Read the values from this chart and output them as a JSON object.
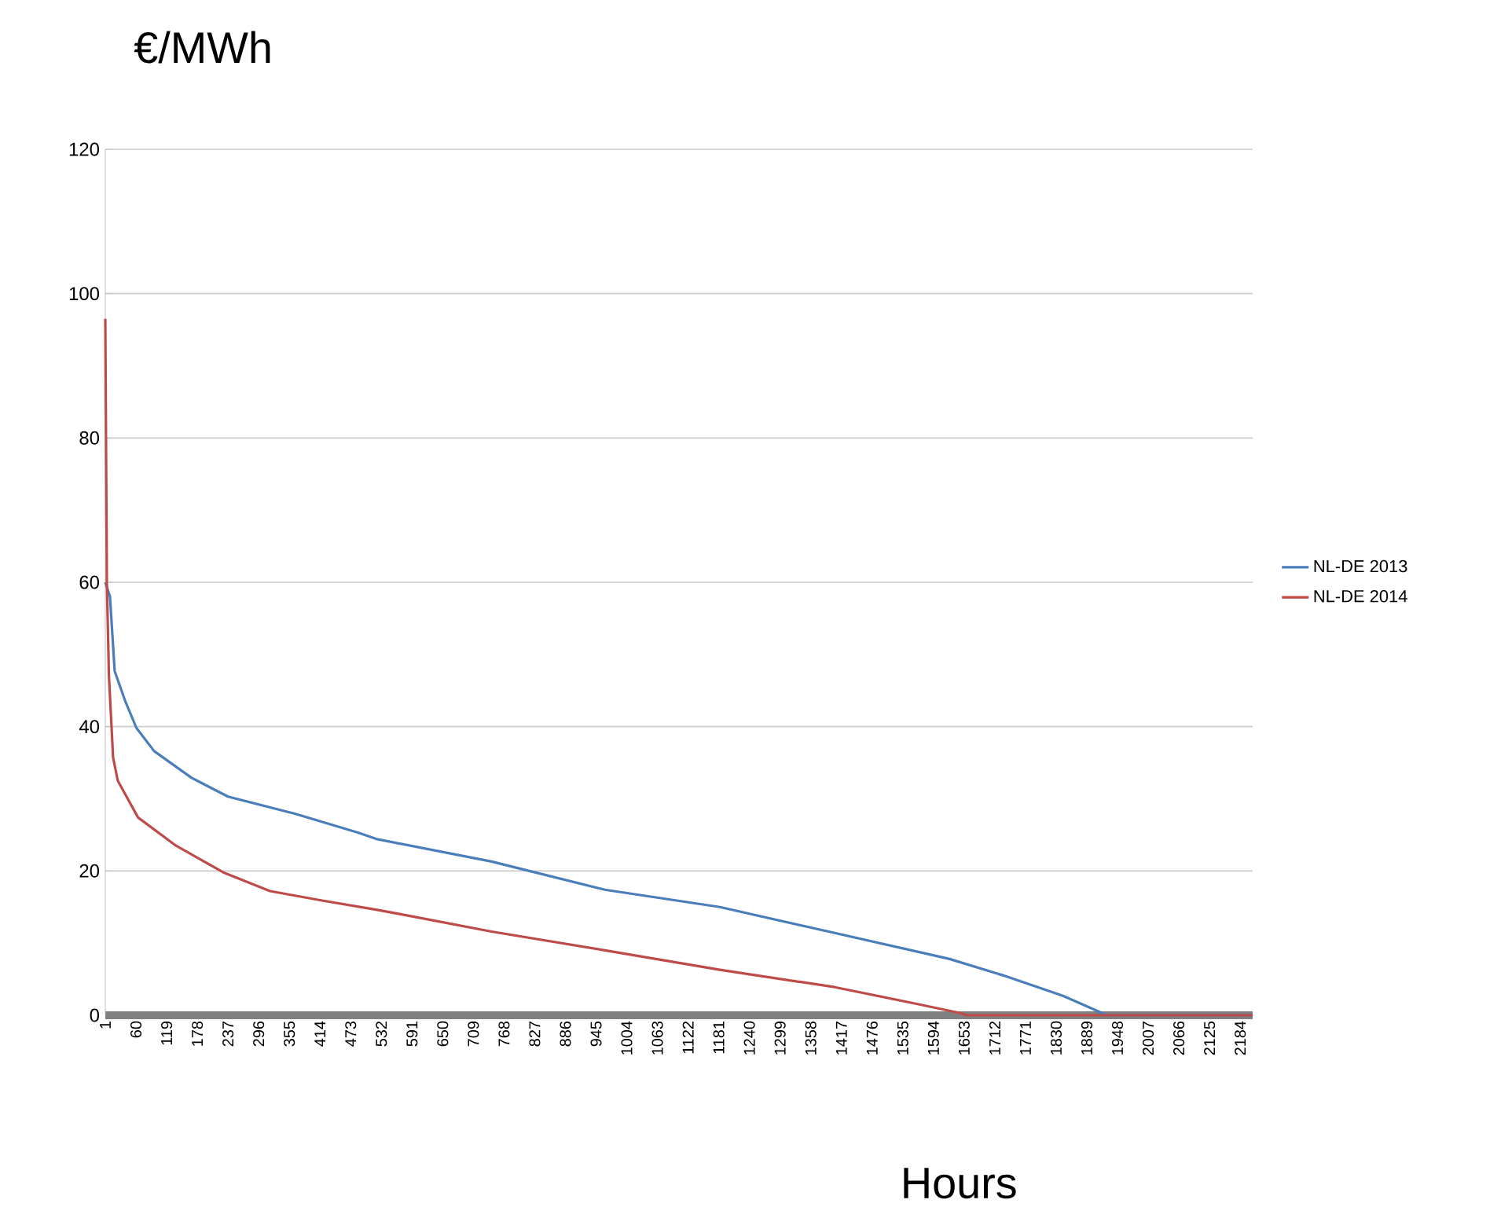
{
  "chart_data": {
    "type": "line",
    "xlabel": "Hours",
    "ylabel": "€/MWh",
    "xlim": [
      1,
      2208
    ],
    "ylim": [
      0,
      120
    ],
    "xticks": [
      1,
      60,
      119,
      178,
      237,
      296,
      355,
      414,
      473,
      532,
      591,
      650,
      709,
      768,
      827,
      886,
      945,
      1004,
      1063,
      1122,
      1181,
      1240,
      1299,
      1358,
      1417,
      1476,
      1535,
      1594,
      1653,
      1712,
      1771,
      1830,
      1889,
      1948,
      2007,
      2066,
      2125,
      2184
    ],
    "yticks": [
      0,
      20,
      40,
      60,
      80,
      100,
      120
    ],
    "grid": "y",
    "legend": "right",
    "marker": "none",
    "line_style": "solid",
    "series": [
      {
        "name": "NL-DE 2013",
        "color": "#4a7ebb",
        "x": [
          1,
          10,
          19,
          40,
          61,
          95,
          167,
          237,
          367,
          488,
          524,
          744,
          962,
          1183,
          1404,
          1625,
          1734,
          1843,
          1928,
          2208
        ],
        "values": [
          60,
          58,
          47.7,
          43.4,
          39.8,
          36.6,
          32.9,
          30.3,
          27.9,
          25.3,
          24.4,
          21.3,
          17.4,
          15.0,
          11.4,
          7.8,
          5.4,
          2.7,
          0,
          0
        ]
      },
      {
        "name": "NL-DE 2014",
        "color": "#be4b48",
        "x": [
          1,
          4,
          8,
          16,
          25,
          64,
          137,
          228,
          318,
          418,
          524,
          569,
          744,
          962,
          1183,
          1404,
          1567,
          1646,
          1658,
          2208
        ],
        "values": [
          96.5,
          60,
          47,
          35.7,
          32.5,
          27.4,
          23.5,
          19.8,
          17.2,
          15.9,
          14.6,
          14.0,
          11.6,
          9.0,
          6.3,
          3.9,
          1.5,
          0.3,
          0,
          0
        ]
      }
    ]
  }
}
